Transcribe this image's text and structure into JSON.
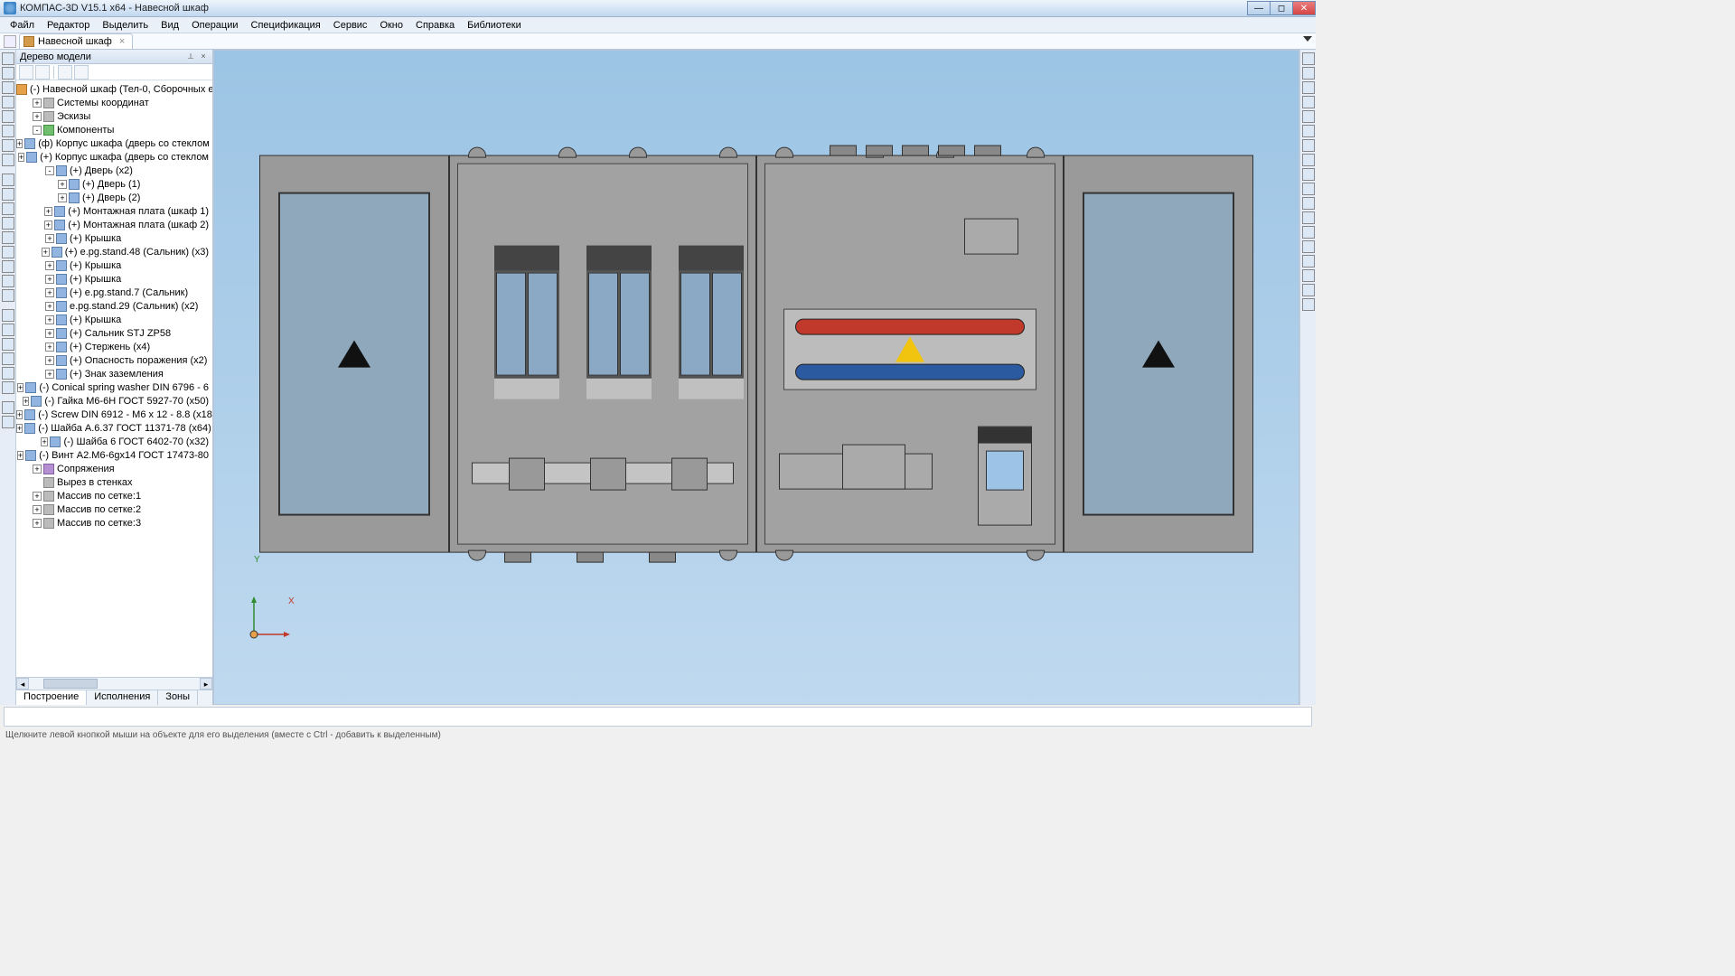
{
  "title": "КОМПАС-3D V15.1 x64 - Навесной шкаф",
  "menu": [
    "Файл",
    "Редактор",
    "Выделить",
    "Вид",
    "Операции",
    "Спецификация",
    "Сервис",
    "Окно",
    "Справка",
    "Библиотеки"
  ],
  "document_tab": "Навесной шкаф",
  "tree_panel": {
    "title": "Дерево модели",
    "bottom_tabs": [
      "Построение",
      "Исполнения",
      "Зоны"
    ],
    "nodes": [
      {
        "d": 0,
        "tw": "",
        "ic": "orange",
        "t": "(-) Навесной шкаф (Тел-0, Сборочных едини"
      },
      {
        "d": 1,
        "tw": "+",
        "ic": "grey",
        "t": "Системы координат"
      },
      {
        "d": 1,
        "tw": "+",
        "ic": "grey",
        "t": "Эскизы"
      },
      {
        "d": 1,
        "tw": "-",
        "ic": "green",
        "t": "Компоненты"
      },
      {
        "d": 2,
        "tw": "+",
        "ic": "",
        "t": "(ф) Корпус шкафа (дверь со стеклом"
      },
      {
        "d": 2,
        "tw": "+",
        "ic": "",
        "t": "(+) Корпус шкафа (дверь со стеклом"
      },
      {
        "d": 2,
        "tw": "-",
        "ic": "",
        "t": "(+) Дверь (x2)"
      },
      {
        "d": 3,
        "tw": "+",
        "ic": "",
        "t": "(+) Дверь (1)"
      },
      {
        "d": 3,
        "tw": "+",
        "ic": "",
        "t": "(+) Дверь (2)"
      },
      {
        "d": 2,
        "tw": "+",
        "ic": "",
        "t": "(+) Монтажная плата (шкаф 1)"
      },
      {
        "d": 2,
        "tw": "+",
        "ic": "",
        "t": "(+) Монтажная плата (шкаф 2)"
      },
      {
        "d": 2,
        "tw": "+",
        "ic": "",
        "t": "(+) Крышка"
      },
      {
        "d": 2,
        "tw": "+",
        "ic": "",
        "t": "(+) e.pg.stand.48 (Сальник) (x3)"
      },
      {
        "d": 2,
        "tw": "+",
        "ic": "",
        "t": "(+) Крышка"
      },
      {
        "d": 2,
        "tw": "+",
        "ic": "",
        "t": "(+) Крышка"
      },
      {
        "d": 2,
        "tw": "+",
        "ic": "",
        "t": "(+) e.pg.stand.7 (Сальник)"
      },
      {
        "d": 2,
        "tw": "+",
        "ic": "",
        "t": "e.pg.stand.29 (Сальник) (x2)"
      },
      {
        "d": 2,
        "tw": "+",
        "ic": "",
        "t": "(+) Крышка"
      },
      {
        "d": 2,
        "tw": "+",
        "ic": "",
        "t": "(+) Сальник STJ ZP58"
      },
      {
        "d": 2,
        "tw": "+",
        "ic": "",
        "t": "(+) Стержень (x4)"
      },
      {
        "d": 2,
        "tw": "+",
        "ic": "",
        "t": "(+) Опасность поражения (x2)"
      },
      {
        "d": 2,
        "tw": "+",
        "ic": "",
        "t": "(+) Знак заземления"
      },
      {
        "d": 2,
        "tw": "+",
        "ic": "",
        "t": "(-) Conical spring washer DIN 6796 - 6"
      },
      {
        "d": 2,
        "tw": "+",
        "ic": "",
        "t": "(-) Гайка M6-6H ГОСТ 5927-70 (x50)"
      },
      {
        "d": 2,
        "tw": "+",
        "ic": "",
        "t": "(-) Screw DIN 6912 - M6 x 12 - 8.8 (x18)"
      },
      {
        "d": 2,
        "tw": "+",
        "ic": "",
        "t": "(-) Шайба A.6.37 ГОСТ 11371-78 (x64)"
      },
      {
        "d": 2,
        "tw": "+",
        "ic": "",
        "t": "(-) Шайба 6 ГОСТ 6402-70 (x32)"
      },
      {
        "d": 2,
        "tw": "+",
        "ic": "",
        "t": "(-) Винт A2.M6-6gx14 ГОСТ 17473-80"
      },
      {
        "d": 1,
        "tw": "+",
        "ic": "purple",
        "t": "Сопряжения"
      },
      {
        "d": 1,
        "tw": "",
        "ic": "grey",
        "t": "Вырез в стенках"
      },
      {
        "d": 1,
        "tw": "+",
        "ic": "grey",
        "t": "Массив по сетке:1"
      },
      {
        "d": 1,
        "tw": "+",
        "ic": "grey",
        "t": "Массив по сетке:2"
      },
      {
        "d": 1,
        "tw": "+",
        "ic": "grey",
        "t": "Массив по сетке:3"
      }
    ]
  },
  "status_text": "Щелкните левой кнопкой мыши на объекте для его выделения (вместе с Ctrl - добавить к выделенным)",
  "viewport": {
    "bg_top": "#9cc4e4",
    "bg_bottom": "#bfd9ef",
    "cabinet_body": "#9a9a9a",
    "cabinet_edge": "#333333",
    "glass": "#8fa8bc",
    "breaker_window": "#8ba8c4",
    "busbar_red": "#c0392b",
    "busbar_blue": "#2c5aa0",
    "warning_triangle": "#f1c40f",
    "axis_x": "#c0392b",
    "axis_y": "#2e8b2e"
  },
  "axis": {
    "x": "X",
    "y": "Y"
  }
}
